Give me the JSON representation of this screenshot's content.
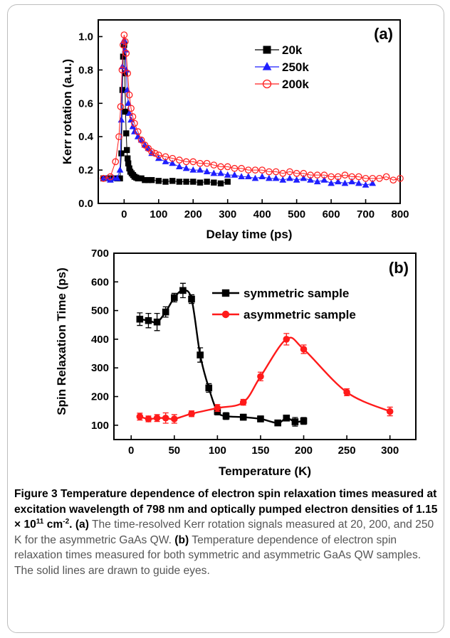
{
  "chart_data": [
    {
      "type": "scatter",
      "panel_label": "(a)",
      "xlabel": "Delay time (ps)",
      "ylabel": "Kerr rotation (a.u.)",
      "xlim": [
        -75,
        800
      ],
      "ylim": [
        0,
        1.1
      ],
      "xticks": [
        0,
        100,
        200,
        300,
        400,
        500,
        600,
        700,
        800
      ],
      "yticks": [
        0.0,
        0.2,
        0.4,
        0.6,
        0.8,
        1.0
      ],
      "legend_position": "top-right",
      "series": [
        {
          "name": "20k",
          "marker": "square",
          "color": "#000000",
          "x": [
            -60,
            -40,
            -20,
            -12,
            -8,
            -5,
            -3,
            0,
            2,
            4,
            6,
            8,
            10,
            12,
            15,
            18,
            22,
            26,
            30,
            35,
            40,
            50,
            60,
            70,
            80,
            100,
            120,
            140,
            160,
            180,
            200,
            220,
            240,
            260,
            280,
            300
          ],
          "y": [
            0.15,
            0.15,
            0.15,
            0.15,
            0.3,
            0.68,
            0.88,
            0.95,
            0.78,
            0.55,
            0.42,
            0.32,
            0.27,
            0.24,
            0.21,
            0.19,
            0.18,
            0.17,
            0.16,
            0.155,
            0.15,
            0.15,
            0.14,
            0.14,
            0.14,
            0.135,
            0.13,
            0.135,
            0.13,
            0.13,
            0.13,
            0.125,
            0.13,
            0.125,
            0.12,
            0.13
          ]
        },
        {
          "name": "250k",
          "marker": "triangle",
          "color": "#1f1fff",
          "x": [
            -60,
            -50,
            -40,
            -30,
            -20,
            -12,
            -8,
            -5,
            -2,
            0,
            3,
            6,
            9,
            12,
            15,
            20,
            25,
            30,
            40,
            50,
            60,
            70,
            80,
            100,
            120,
            140,
            160,
            180,
            200,
            220,
            240,
            260,
            280,
            300,
            320,
            340,
            360,
            380,
            400,
            420,
            440,
            460,
            480,
            500,
            520,
            540,
            560,
            580,
            600,
            620,
            640,
            660,
            680,
            700,
            720
          ],
          "y": [
            0.15,
            0.15,
            0.14,
            0.15,
            0.15,
            0.2,
            0.5,
            0.82,
            0.97,
            0.98,
            0.92,
            0.8,
            0.68,
            0.6,
            0.54,
            0.5,
            0.46,
            0.43,
            0.4,
            0.38,
            0.35,
            0.33,
            0.3,
            0.27,
            0.25,
            0.24,
            0.22,
            0.21,
            0.2,
            0.2,
            0.19,
            0.18,
            0.18,
            0.17,
            0.17,
            0.16,
            0.16,
            0.15,
            0.16,
            0.15,
            0.15,
            0.14,
            0.15,
            0.14,
            0.15,
            0.14,
            0.13,
            0.14,
            0.12,
            0.13,
            0.12,
            0.13,
            0.12,
            0.11,
            0.12
          ]
        },
        {
          "name": "200k",
          "marker": "open-circle",
          "color": "#ff2020",
          "x": [
            -60,
            -40,
            -25,
            -15,
            -10,
            -6,
            -3,
            0,
            3,
            6,
            10,
            15,
            20,
            25,
            30,
            40,
            50,
            60,
            70,
            80,
            90,
            100,
            120,
            140,
            160,
            180,
            200,
            220,
            240,
            260,
            280,
            300,
            320,
            340,
            360,
            380,
            400,
            420,
            440,
            460,
            480,
            500,
            520,
            540,
            560,
            580,
            600,
            620,
            640,
            660,
            680,
            700,
            720,
            740,
            760,
            780,
            800
          ],
          "y": [
            0.15,
            0.16,
            0.25,
            0.4,
            0.58,
            0.8,
            0.95,
            1.01,
            0.97,
            0.9,
            0.78,
            0.65,
            0.57,
            0.52,
            0.48,
            0.43,
            0.38,
            0.35,
            0.33,
            0.31,
            0.3,
            0.29,
            0.28,
            0.27,
            0.26,
            0.25,
            0.25,
            0.24,
            0.24,
            0.23,
            0.22,
            0.22,
            0.21,
            0.21,
            0.2,
            0.2,
            0.2,
            0.19,
            0.19,
            0.18,
            0.19,
            0.18,
            0.18,
            0.17,
            0.17,
            0.17,
            0.16,
            0.16,
            0.17,
            0.16,
            0.16,
            0.15,
            0.15,
            0.15,
            0.16,
            0.14,
            0.15
          ]
        }
      ]
    },
    {
      "type": "line",
      "panel_label": "(b)",
      "xlabel": "Temperature (K)",
      "ylabel": "Spin Relaxation Time (ps)",
      "xlim": [
        -20,
        330
      ],
      "ylim": [
        50,
        700
      ],
      "xticks": [
        0,
        50,
        100,
        150,
        200,
        250,
        300
      ],
      "yticks": [
        100,
        200,
        300,
        400,
        500,
        600,
        700
      ],
      "legend_position": "top-right",
      "series": [
        {
          "name": "symmetric sample",
          "marker": "square",
          "color": "#000000",
          "x": [
            10,
            20,
            30,
            40,
            50,
            60,
            70,
            80,
            90,
            100,
            110,
            130,
            150,
            170,
            180,
            190,
            200
          ],
          "y": [
            470,
            465,
            460,
            495,
            545,
            570,
            540,
            345,
            230,
            148,
            132,
            128,
            122,
            108,
            125,
            112,
            115
          ],
          "err": [
            22,
            25,
            30,
            18,
            15,
            25,
            15,
            25,
            15,
            12,
            12,
            10,
            10,
            8,
            10,
            15,
            12
          ]
        },
        {
          "name": "asymmetric sample",
          "marker": "circle",
          "color": "#ff1a1a",
          "x": [
            10,
            20,
            30,
            40,
            50,
            70,
            100,
            130,
            150,
            180,
            200,
            250,
            300
          ],
          "y": [
            130,
            122,
            125,
            125,
            122,
            140,
            160,
            180,
            270,
            400,
            365,
            215,
            148
          ],
          "err": [
            12,
            10,
            12,
            18,
            15,
            10,
            12,
            10,
            15,
            20,
            15,
            12,
            15
          ]
        }
      ]
    }
  ],
  "caption": {
    "title": "Figure 3 Temperature dependence of electron spin relaxation times measured at excitation wavelength of 798 nm and optically pumped electron densities of 1.15 × 10",
    "title_sup1": "11",
    "title_unit": " cm",
    "title_sup2": "-2",
    "title_end": ".",
    "a_label": "(a)",
    "a_text": " The time-resolved Kerr rotation signals measured at 20, 200, and 250 K for the asymmetric GaAs QW. ",
    "b_label": "(b)",
    "b_text": " Temperature dependence of electron spin relaxation times measured for both symmetric and asymmetric GaAs QW samples. The solid lines are drawn to guide eyes."
  }
}
